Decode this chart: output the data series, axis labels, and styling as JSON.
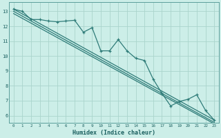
{
  "title": "",
  "xlabel": "Humidex (Indice chaleur)",
  "ylabel": "",
  "bg_color": "#cceee8",
  "grid_color": "#aad4cc",
  "line_color": "#2e7b78",
  "xlim": [
    -0.5,
    23.5
  ],
  "ylim": [
    5.5,
    13.6
  ],
  "xticks": [
    0,
    1,
    2,
    3,
    4,
    5,
    6,
    7,
    8,
    9,
    10,
    11,
    12,
    13,
    14,
    15,
    16,
    17,
    18,
    19,
    20,
    21,
    22,
    23
  ],
  "yticks": [
    6,
    7,
    8,
    9,
    10,
    11,
    12,
    13
  ],
  "data_line": [
    [
      0,
      13.15
    ],
    [
      1,
      13.0
    ],
    [
      2,
      12.45
    ],
    [
      3,
      12.45
    ],
    [
      4,
      12.35
    ],
    [
      5,
      12.3
    ],
    [
      6,
      12.35
    ],
    [
      7,
      12.4
    ],
    [
      8,
      11.6
    ],
    [
      9,
      11.9
    ],
    [
      10,
      10.35
    ],
    [
      11,
      10.35
    ],
    [
      12,
      11.1
    ],
    [
      13,
      10.35
    ],
    [
      14,
      9.85
    ],
    [
      15,
      9.7
    ],
    [
      16,
      8.45
    ],
    [
      17,
      7.5
    ],
    [
      18,
      6.65
    ],
    [
      19,
      6.95
    ],
    [
      20,
      7.1
    ],
    [
      21,
      7.4
    ],
    [
      22,
      6.35
    ],
    [
      23,
      5.7
    ]
  ],
  "line1": [
    [
      0,
      13.15
    ],
    [
      23,
      5.7
    ]
  ],
  "line2": [
    [
      0,
      12.85
    ],
    [
      23,
      5.45
    ]
  ],
  "line3": [
    [
      0,
      13.0
    ],
    [
      23,
      5.55
    ]
  ]
}
